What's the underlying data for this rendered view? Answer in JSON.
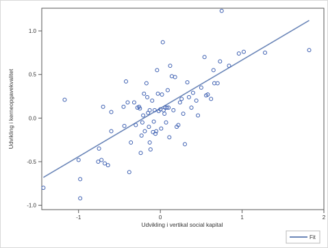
{
  "chart_data": {
    "type": "scatter",
    "title": "",
    "xlabel": "Udvikling i vertikal social kapital",
    "ylabel": "Udvikling i kerneopgavekvalitet",
    "xlim": [
      -1.45,
      2.0
    ],
    "ylim": [
      -1.05,
      1.26
    ],
    "xticks": [
      -1,
      0,
      1,
      2
    ],
    "xtick_labels": [
      "-1",
      "0",
      "1",
      "2"
    ],
    "yticks": [
      -1.0,
      -0.5,
      0.0,
      0.5,
      1.0
    ],
    "ytick_labels": [
      "-1.0",
      "-0.5",
      "0.0",
      "0.5",
      "1.0"
    ],
    "grid": false,
    "legend_position": "bottom-right",
    "marker_color": "#3a5db0",
    "fit_color": "#6b86b8",
    "series": [
      {
        "type": "scatter",
        "points": [
          [
            -1.43,
            -0.8
          ],
          [
            -1.17,
            0.21
          ],
          [
            -0.98,
            -0.92
          ],
          [
            -0.98,
            -0.7
          ],
          [
            -1.0,
            -0.48
          ],
          [
            -0.75,
            -0.35
          ],
          [
            -0.76,
            -0.5
          ],
          [
            -0.72,
            -0.48
          ],
          [
            -0.68,
            -0.52
          ],
          [
            -0.7,
            0.13
          ],
          [
            -0.64,
            -0.54
          ],
          [
            -0.6,
            0.07
          ],
          [
            -0.6,
            -0.15
          ],
          [
            -0.45,
            0.13
          ],
          [
            -0.44,
            -0.09
          ],
          [
            -0.42,
            0.42
          ],
          [
            -0.4,
            0.18
          ],
          [
            -0.38,
            -0.62
          ],
          [
            -0.36,
            -0.28
          ],
          [
            -0.32,
            0.18
          ],
          [
            -0.3,
            -0.08
          ],
          [
            -0.28,
            0.12
          ],
          [
            -0.26,
            0.13
          ],
          [
            -0.25,
            0.11
          ],
          [
            -0.22,
            -0.05
          ],
          [
            -0.24,
            -0.4
          ],
          [
            -0.23,
            -0.2
          ],
          [
            -0.21,
            0.03
          ],
          [
            -0.2,
            0.28
          ],
          [
            -0.19,
            -0.15
          ],
          [
            -0.17,
            0.4
          ],
          [
            -0.16,
            0.24
          ],
          [
            -0.15,
            0.06
          ],
          [
            -0.14,
            -0.1
          ],
          [
            -0.13,
            -0.28
          ],
          [
            -0.13,
            0.09
          ],
          [
            -0.12,
            -0.36
          ],
          [
            -0.1,
            0.2
          ],
          [
            -0.09,
            -0.16
          ],
          [
            -0.08,
            -0.04
          ],
          [
            -0.07,
            0.09
          ],
          [
            -0.06,
            -0.18
          ],
          [
            -0.05,
            -0.15
          ],
          [
            -0.04,
            0.55
          ],
          [
            -0.03,
            0.28
          ],
          [
            -0.02,
            0.08
          ],
          [
            0.0,
            0.1
          ],
          [
            0.01,
            -0.12
          ],
          [
            0.02,
            0.27
          ],
          [
            0.03,
            0.87
          ],
          [
            0.04,
            0.09
          ],
          [
            0.05,
            0.05
          ],
          [
            0.06,
            0.12
          ],
          [
            0.07,
            -0.05
          ],
          [
            0.08,
            0.12
          ],
          [
            0.09,
            0.32
          ],
          [
            0.1,
            0.12
          ],
          [
            0.11,
            -0.22
          ],
          [
            0.12,
            0.6
          ],
          [
            0.14,
            0.48
          ],
          [
            0.16,
            0.09
          ],
          [
            0.18,
            0.47
          ],
          [
            0.2,
            -0.1
          ],
          [
            0.22,
            -0.08
          ],
          [
            0.24,
            0.18
          ],
          [
            0.26,
            0.22
          ],
          [
            0.28,
            0.05
          ],
          [
            0.3,
            -0.3
          ],
          [
            0.33,
            0.41
          ],
          [
            0.35,
            0.24
          ],
          [
            0.38,
            0.12
          ],
          [
            0.4,
            0.29
          ],
          [
            0.44,
            0.2
          ],
          [
            0.46,
            0.03
          ],
          [
            0.5,
            0.35
          ],
          [
            0.54,
            0.7
          ],
          [
            0.56,
            0.26
          ],
          [
            0.58,
            0.27
          ],
          [
            0.62,
            0.22
          ],
          [
            0.65,
            0.55
          ],
          [
            0.66,
            0.4
          ],
          [
            0.7,
            0.4
          ],
          [
            0.73,
            0.65
          ],
          [
            0.75,
            1.23
          ],
          [
            0.84,
            0.6
          ],
          [
            0.96,
            0.74
          ],
          [
            1.02,
            0.76
          ],
          [
            1.28,
            0.75
          ],
          [
            1.82,
            0.78
          ]
        ]
      },
      {
        "name": "Fit",
        "type": "line",
        "x": [
          -1.43,
          1.82
        ],
        "y": [
          -0.68,
          1.12
        ]
      }
    ]
  }
}
